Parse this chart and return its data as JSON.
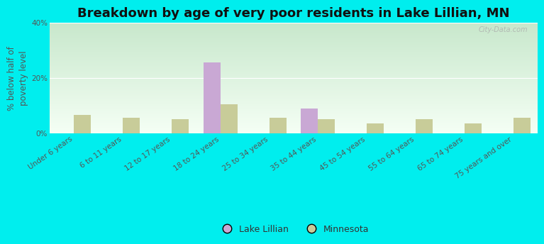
{
  "title": "Breakdown by age of very poor residents in Lake Lillian, MN",
  "ylabel": "% below half of\npoverty level",
  "categories": [
    "Under 6 years",
    "6 to 11 years",
    "12 to 17 years",
    "18 to 24 years",
    "25 to 34 years",
    "35 to 44 years",
    "45 to 54 years",
    "55 to 64 years",
    "65 to 74 years",
    "75 years and over"
  ],
  "lake_lillian": [
    0,
    0,
    0,
    25.5,
    0,
    9.0,
    0,
    0,
    0,
    0
  ],
  "minnesota": [
    6.5,
    5.5,
    5.0,
    10.5,
    5.5,
    5.0,
    3.5,
    5.0,
    3.5,
    5.5
  ],
  "lake_lillian_color": "#c9a8d4",
  "minnesota_color": "#c8cc99",
  "background_color": "#00eeee",
  "plot_bg_top": "#c8e8cc",
  "plot_bg_bottom": "#f5fff5",
  "ylim": [
    0,
    40
  ],
  "yticks": [
    0,
    20,
    40
  ],
  "ytick_labels": [
    "0%",
    "20%",
    "40%"
  ],
  "bar_width": 0.35,
  "title_fontsize": 13,
  "axis_label_fontsize": 8.5,
  "tick_fontsize": 7.5,
  "legend_fontsize": 9,
  "watermark": "City-Data.com"
}
